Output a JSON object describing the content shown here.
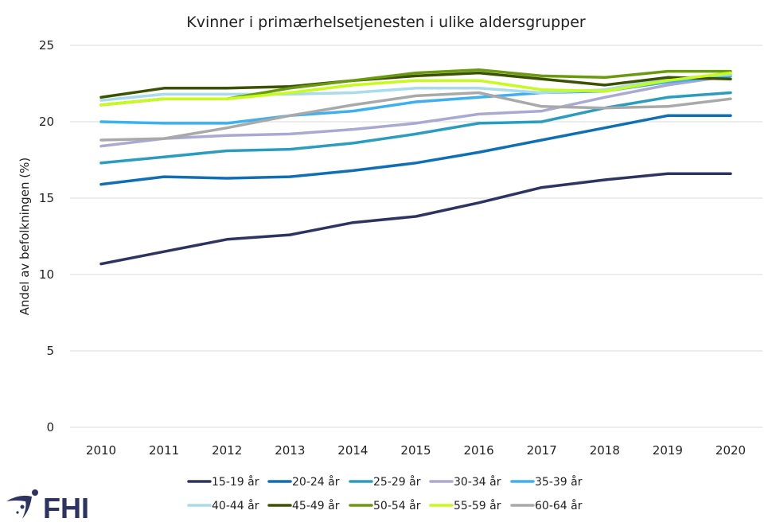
{
  "chart_data": {
    "type": "line",
    "title": "Kvinner i primærhelsetjenesten i ulike aldersgrupper",
    "xlabel": "",
    "ylabel": "Andel av befolkningen (%)",
    "ylim": [
      0,
      25
    ],
    "yticks": [
      "0",
      "5",
      "10",
      "15",
      "20",
      "25"
    ],
    "grid": true,
    "legend_position": "bottom",
    "x": [
      "2010",
      "2011",
      "2012",
      "2013",
      "2014",
      "2015",
      "2016",
      "2017",
      "2018",
      "2019",
      "2020"
    ],
    "series": [
      {
        "name": "15-19 år",
        "color": "#2E3461",
        "values": [
          10.7,
          11.5,
          12.3,
          12.6,
          13.4,
          13.8,
          14.7,
          15.7,
          16.2,
          16.6,
          16.6
        ]
      },
      {
        "name": "20-24 år",
        "color": "#0F6FB4",
        "values": [
          15.9,
          16.4,
          16.3,
          16.4,
          16.8,
          17.3,
          18.0,
          18.8,
          19.6,
          20.4,
          20.4
        ]
      },
      {
        "name": "25-29 år",
        "color": "#2A9DBF",
        "values": [
          17.3,
          17.7,
          18.1,
          18.2,
          18.6,
          19.2,
          19.9,
          20.0,
          20.9,
          21.6,
          21.9
        ]
      },
      {
        "name": "30-34 år",
        "color": "#A9A9D2",
        "values": [
          18.4,
          18.9,
          19.1,
          19.2,
          19.5,
          19.9,
          20.5,
          20.7,
          21.6,
          22.4,
          23.0
        ]
      },
      {
        "name": "35-39 år",
        "color": "#3DB0F0",
        "values": [
          20.0,
          19.9,
          19.9,
          20.4,
          20.7,
          21.3,
          21.6,
          21.9,
          22.0,
          22.6,
          23.0
        ]
      },
      {
        "name": "40-44 år",
        "color": "#A8DBEB",
        "values": [
          21.4,
          21.8,
          21.8,
          21.8,
          21.9,
          22.2,
          22.2,
          21.9,
          22.1,
          22.8,
          23.1
        ]
      },
      {
        "name": "45-49 år",
        "color": "#3B5200",
        "values": [
          21.6,
          22.2,
          22.2,
          22.3,
          22.7,
          23.0,
          23.2,
          22.8,
          22.4,
          22.9,
          22.8
        ]
      },
      {
        "name": "50-54 år",
        "color": "#6A9A0E",
        "values": [
          21.1,
          21.5,
          21.5,
          22.2,
          22.7,
          23.2,
          23.4,
          23.0,
          22.9,
          23.3,
          23.3
        ]
      },
      {
        "name": "55-59 år",
        "color": "#C6FB1C",
        "values": [
          21.1,
          21.5,
          21.5,
          21.9,
          22.4,
          22.7,
          22.7,
          22.1,
          22.0,
          22.7,
          23.2
        ]
      },
      {
        "name": "60-64 år",
        "color": "#A9A9A9",
        "values": [
          18.8,
          18.9,
          19.6,
          20.4,
          21.1,
          21.7,
          21.9,
          21.0,
          20.9,
          21.0,
          21.5
        ]
      }
    ]
  },
  "logo": {
    "text": "FHI",
    "color": "#2E3461"
  }
}
